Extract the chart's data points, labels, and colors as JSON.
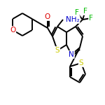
{
  "background_color": "#ffffff",
  "atom_colors": {
    "C": "#000000",
    "N": "#0000cc",
    "O": "#dd0000",
    "S": "#cccc00",
    "F": "#00bb00",
    "H": "#000000"
  },
  "bond_color": "#000000",
  "bond_width": 1.4,
  "figsize": [
    1.5,
    1.5
  ],
  "dpi": 100
}
